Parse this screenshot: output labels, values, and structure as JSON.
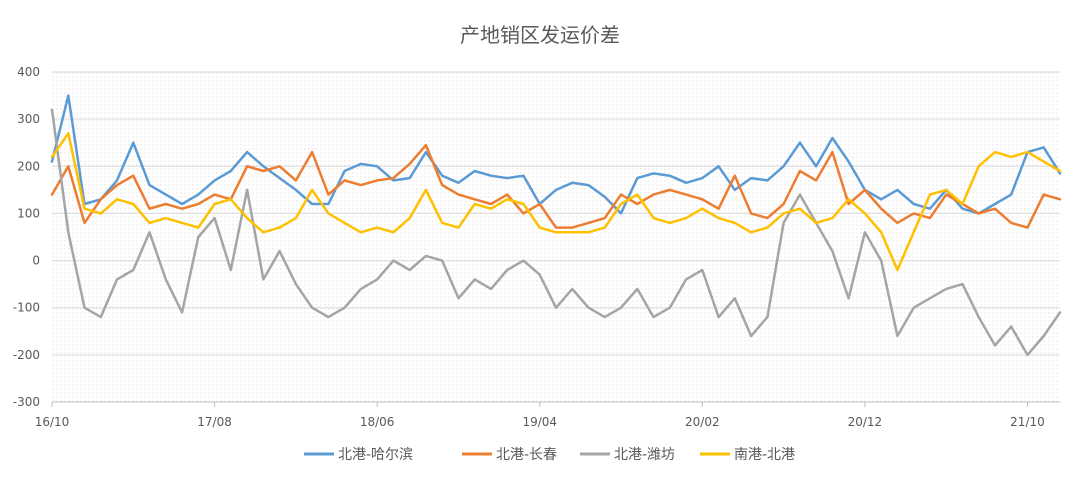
{
  "chart_data": {
    "type": "line",
    "title": "产地销区发运价差",
    "xlabel": "",
    "ylabel": "",
    "ylim": [
      -300,
      400
    ],
    "yticks": [
      -300,
      -200,
      -100,
      0,
      100,
      200,
      300,
      400
    ],
    "x_tick_labels": [
      "16/10",
      "17/08",
      "18/06",
      "19/04",
      "20/02",
      "20/12",
      "21/10"
    ],
    "x_range": [
      "2016-10",
      "2021-12"
    ],
    "grid": true,
    "legend_position": "bottom",
    "series": [
      {
        "name": "北港-哈尔滨",
        "color": "#5B9BD5",
        "x": [
          "2016-10",
          "2016-11",
          "2016-12",
          "2017-01",
          "2017-02",
          "2017-03",
          "2017-04",
          "2017-05",
          "2017-06",
          "2017-07",
          "2017-08",
          "2017-09",
          "2017-10",
          "2017-11",
          "2017-12",
          "2018-01",
          "2018-02",
          "2018-03",
          "2018-04",
          "2018-05",
          "2018-06",
          "2018-07",
          "2018-08",
          "2018-09",
          "2018-10",
          "2018-11",
          "2018-12",
          "2019-01",
          "2019-02",
          "2019-03",
          "2019-04",
          "2019-05",
          "2019-06",
          "2019-07",
          "2019-08",
          "2019-09",
          "2019-10",
          "2019-11",
          "2019-12",
          "2020-01",
          "2020-02",
          "2020-03",
          "2020-04",
          "2020-05",
          "2020-06",
          "2020-07",
          "2020-08",
          "2020-09",
          "2020-10",
          "2020-11",
          "2020-12",
          "2021-01",
          "2021-02",
          "2021-03",
          "2021-04",
          "2021-05",
          "2021-06",
          "2021-07",
          "2021-08",
          "2021-09",
          "2021-10",
          "2021-11",
          "2021-12"
        ],
        "values": [
          210,
          350,
          120,
          130,
          170,
          250,
          160,
          140,
          120,
          140,
          170,
          190,
          230,
          200,
          175,
          150,
          120,
          120,
          190,
          205,
          200,
          170,
          175,
          230,
          180,
          165,
          190,
          180,
          175,
          180,
          120,
          150,
          165,
          160,
          135,
          100,
          175,
          185,
          180,
          165,
          175,
          200,
          150,
          175,
          170,
          200,
          250,
          200,
          260,
          210,
          150,
          130,
          150,
          120,
          110,
          150,
          110,
          100,
          120,
          140,
          230,
          240,
          185
        ]
      },
      {
        "name": "北港-长春",
        "color": "#ED7D31",
        "x": [
          "2016-10",
          "2016-11",
          "2016-12",
          "2017-01",
          "2017-02",
          "2017-03",
          "2017-04",
          "2017-05",
          "2017-06",
          "2017-07",
          "2017-08",
          "2017-09",
          "2017-10",
          "2017-11",
          "2017-12",
          "2018-01",
          "2018-02",
          "2018-03",
          "2018-04",
          "2018-05",
          "2018-06",
          "2018-07",
          "2018-08",
          "2018-09",
          "2018-10",
          "2018-11",
          "2018-12",
          "2019-01",
          "2019-02",
          "2019-03",
          "2019-04",
          "2019-05",
          "2019-06",
          "2019-07",
          "2019-08",
          "2019-09",
          "2019-10",
          "2019-11",
          "2019-12",
          "2020-01",
          "2020-02",
          "2020-03",
          "2020-04",
          "2020-05",
          "2020-06",
          "2020-07",
          "2020-08",
          "2020-09",
          "2020-10",
          "2020-11",
          "2020-12",
          "2021-01",
          "2021-02",
          "2021-03",
          "2021-04",
          "2021-05",
          "2021-06",
          "2021-07",
          "2021-08",
          "2021-09",
          "2021-10",
          "2021-11",
          "2021-12"
        ],
        "values": [
          140,
          200,
          80,
          130,
          160,
          180,
          110,
          120,
          110,
          120,
          140,
          130,
          200,
          190,
          200,
          170,
          230,
          140,
          170,
          160,
          170,
          175,
          205,
          245,
          160,
          140,
          130,
          120,
          140,
          100,
          120,
          70,
          70,
          80,
          90,
          140,
          120,
          140,
          150,
          140,
          130,
          110,
          180,
          100,
          90,
          120,
          190,
          170,
          230,
          120,
          150,
          110,
          80,
          100,
          90,
          140,
          120,
          100,
          110,
          80,
          70,
          140,
          130
        ]
      },
      {
        "name": "北港-潍坊",
        "color": "#A5A5A5",
        "x": [
          "2016-10",
          "2016-11",
          "2016-12",
          "2017-01",
          "2017-02",
          "2017-03",
          "2017-04",
          "2017-05",
          "2017-06",
          "2017-07",
          "2017-08",
          "2017-09",
          "2017-10",
          "2017-11",
          "2017-12",
          "2018-01",
          "2018-02",
          "2018-03",
          "2018-04",
          "2018-05",
          "2018-06",
          "2018-07",
          "2018-08",
          "2018-09",
          "2018-10",
          "2018-11",
          "2018-12",
          "2019-01",
          "2019-02",
          "2019-03",
          "2019-04",
          "2019-05",
          "2019-06",
          "2019-07",
          "2019-08",
          "2019-09",
          "2019-10",
          "2019-11",
          "2019-12",
          "2020-01",
          "2020-02",
          "2020-03",
          "2020-04",
          "2020-05",
          "2020-06",
          "2020-07",
          "2020-08",
          "2020-09",
          "2020-10",
          "2020-11",
          "2020-12",
          "2021-01",
          "2021-02",
          "2021-03",
          "2021-04",
          "2021-05",
          "2021-06",
          "2021-07",
          "2021-08",
          "2021-09",
          "2021-10",
          "2021-11",
          "2021-12"
        ],
        "values": [
          320,
          60,
          -100,
          -120,
          -40,
          -20,
          60,
          -40,
          -110,
          50,
          90,
          -20,
          150,
          -40,
          20,
          -50,
          -100,
          -120,
          -100,
          -60,
          -40,
          0,
          -20,
          10,
          0,
          -80,
          -40,
          -60,
          -20,
          0,
          -30,
          -100,
          -60,
          -100,
          -120,
          -100,
          -60,
          -120,
          -100,
          -40,
          -20,
          -120,
          -80,
          -160,
          -120,
          80,
          140,
          80,
          20,
          -80,
          60,
          0,
          -160,
          -100,
          -80,
          -60,
          -50,
          -120,
          -180,
          -140,
          -200,
          -160,
          -110
        ]
      },
      {
        "name": "南港-北港",
        "color": "#FFC000",
        "x": [
          "2016-10",
          "2016-11",
          "2016-12",
          "2017-01",
          "2017-02",
          "2017-03",
          "2017-04",
          "2017-05",
          "2017-06",
          "2017-07",
          "2017-08",
          "2017-09",
          "2017-10",
          "2017-11",
          "2017-12",
          "2018-01",
          "2018-02",
          "2018-03",
          "2018-04",
          "2018-05",
          "2018-06",
          "2018-07",
          "2018-08",
          "2018-09",
          "2018-10",
          "2018-11",
          "2018-12",
          "2019-01",
          "2019-02",
          "2019-03",
          "2019-04",
          "2019-05",
          "2019-06",
          "2019-07",
          "2019-08",
          "2019-09",
          "2019-10",
          "2019-11",
          "2019-12",
          "2020-01",
          "2020-02",
          "2020-03",
          "2020-04",
          "2020-05",
          "2020-06",
          "2020-07",
          "2020-08",
          "2020-09",
          "2020-10",
          "2020-11",
          "2020-12",
          "2021-01",
          "2021-02",
          "2021-03",
          "2021-04",
          "2021-05",
          "2021-06",
          "2021-07",
          "2021-08",
          "2021-09",
          "2021-10",
          "2021-11",
          "2021-12"
        ],
        "values": [
          220,
          270,
          110,
          100,
          130,
          120,
          80,
          90,
          80,
          70,
          120,
          130,
          90,
          60,
          70,
          90,
          150,
          100,
          80,
          60,
          70,
          60,
          90,
          150,
          80,
          70,
          120,
          110,
          130,
          120,
          70,
          60,
          60,
          60,
          70,
          120,
          140,
          90,
          80,
          90,
          110,
          90,
          80,
          60,
          70,
          100,
          110,
          80,
          90,
          130,
          100,
          60,
          -20,
          60,
          140,
          150,
          120,
          200,
          230,
          220,
          230,
          210,
          190
        ]
      }
    ]
  }
}
